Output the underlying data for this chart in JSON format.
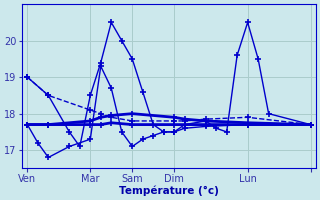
{
  "background_color": "#cce8ec",
  "grid_color": "#aacccc",
  "line_color": "#0000cc",
  "xlabel": "Température (°c)",
  "xlabel_color": "#0000aa",
  "tick_color": "#3333aa",
  "ylabel_ticks": [
    17,
    18,
    19,
    20
  ],
  "x_tick_positions": [
    0,
    6,
    10,
    14,
    21,
    27
  ],
  "x_tick_labels": [
    "Ven",
    "Mar",
    "Sam",
    "Dim",
    "Lun",
    ""
  ],
  "series": [
    {
      "x": [
        0,
        2,
        6,
        7,
        8,
        10,
        14,
        15,
        17,
        21,
        27
      ],
      "y": [
        19.0,
        18.5,
        18.1,
        18.0,
        17.9,
        17.8,
        17.8,
        17.8,
        17.85,
        17.9,
        17.7
      ],
      "linestyle": "--",
      "linewidth": 1.0
    },
    {
      "x": [
        0,
        2,
        6,
        7,
        8,
        10,
        14,
        15,
        17,
        21,
        27
      ],
      "y": [
        17.7,
        17.7,
        17.7,
        17.7,
        17.75,
        17.7,
        17.7,
        17.7,
        17.7,
        17.7,
        17.7
      ],
      "linestyle": "-",
      "linewidth": 2.0
    },
    {
      "x": [
        0,
        2,
        6,
        7,
        8,
        10,
        14,
        15,
        17,
        21,
        27
      ],
      "y": [
        17.7,
        17.7,
        17.8,
        17.9,
        17.95,
        18.0,
        17.9,
        17.85,
        17.8,
        17.75,
        17.7
      ],
      "linestyle": "-",
      "linewidth": 2.0
    },
    {
      "x": [
        0,
        1,
        2,
        4,
        6,
        7,
        8,
        9,
        10,
        11,
        12,
        13,
        14,
        15,
        17,
        21,
        27
      ],
      "y": [
        17.7,
        17.2,
        16.8,
        17.1,
        17.3,
        19.3,
        18.7,
        17.5,
        17.1,
        17.3,
        17.4,
        17.5,
        17.5,
        17.6,
        17.65,
        17.7,
        17.7
      ],
      "linestyle": "-",
      "linewidth": 1.0
    },
    {
      "x": [
        0,
        2,
        4,
        5,
        6,
        7,
        8,
        9,
        10,
        11,
        12,
        13,
        14,
        15,
        17,
        18,
        19,
        20,
        21,
        22,
        23,
        27
      ],
      "y": [
        19.0,
        18.5,
        17.5,
        17.1,
        18.5,
        19.4,
        20.5,
        20.0,
        19.5,
        18.6,
        17.7,
        17.5,
        17.5,
        17.7,
        17.8,
        17.6,
        17.5,
        19.6,
        20.5,
        19.5,
        18.0,
        17.7
      ],
      "linestyle": "-",
      "linewidth": 1.0
    }
  ],
  "ylim": [
    16.5,
    21.0
  ],
  "xlim": [
    -0.5,
    27.5
  ]
}
